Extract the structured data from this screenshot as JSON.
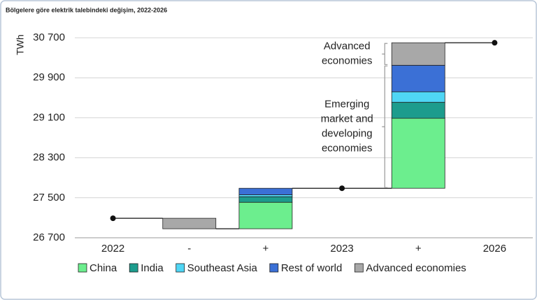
{
  "chart_data": {
    "type": "waterfall",
    "title": "Bölgelere göre elektrik talebindeki değişim, 2022-2026",
    "y_label": "TWh",
    "categories": [
      "2022",
      "-",
      "+",
      "2023",
      "+",
      "2026"
    ],
    "totals": [
      27090,
      null,
      null,
      27690,
      null,
      30600
    ],
    "series": [
      {
        "name": "China",
        "color": "#6cee8e",
        "values": [
          null,
          null,
          530,
          null,
          1400,
          null
        ]
      },
      {
        "name": "India",
        "color": "#1d9c8d",
        "values": [
          null,
          null,
          110,
          null,
          320,
          null
        ]
      },
      {
        "name": "Southeast Asia",
        "color": "#4fd6f5",
        "values": [
          null,
          null,
          40,
          null,
          210,
          null
        ]
      },
      {
        "name": "Rest of world",
        "color": "#3b70d6",
        "values": [
          null,
          null,
          130,
          null,
          530,
          null
        ]
      },
      {
        "name": "Advanced economies",
        "color": "#a8a8a8",
        "values": [
          null,
          -210,
          null,
          null,
          450,
          null
        ]
      }
    ],
    "ylim": [
      26700,
      30900
    ],
    "yticks": [
      {
        "value": 26700,
        "label": "26 700"
      },
      {
        "value": 27500,
        "label": "27 500"
      },
      {
        "value": 28300,
        "label": "28 300"
      },
      {
        "value": 29100,
        "label": "29 100"
      },
      {
        "value": 29900,
        "label": "29 900"
      },
      {
        "value": 30700,
        "label": "30 700"
      }
    ],
    "grid": true,
    "annotations": [
      {
        "lines": [
          "Advanced",
          "economies"
        ]
      },
      {
        "lines": [
          "Emerging",
          "market and",
          "developing",
          "economies"
        ]
      }
    ]
  }
}
